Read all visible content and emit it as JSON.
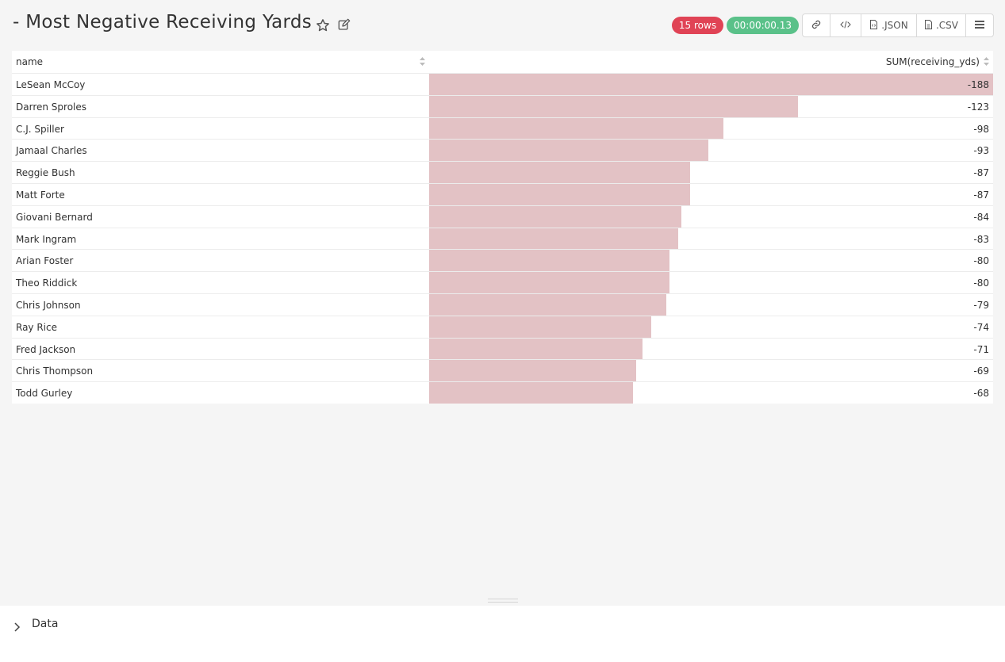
{
  "header": {
    "title": "- Most Negative Receiving Yards",
    "rows_badge": "15 rows",
    "time_badge": "00:00:00.13",
    "json_label": ".JSON",
    "csv_label": ".CSV"
  },
  "table": {
    "columns": [
      "name",
      "SUM(receiving_yds)"
    ],
    "max_abs": 188,
    "rows": [
      {
        "name": "LeSean McCoy",
        "value": -188
      },
      {
        "name": "Darren Sproles",
        "value": -123
      },
      {
        "name": "C.J. Spiller",
        "value": -98
      },
      {
        "name": "Jamaal Charles",
        "value": -93
      },
      {
        "name": "Reggie Bush",
        "value": -87
      },
      {
        "name": "Matt Forte",
        "value": -87
      },
      {
        "name": "Giovani Bernard",
        "value": -84
      },
      {
        "name": "Mark Ingram",
        "value": -83
      },
      {
        "name": "Arian Foster",
        "value": -80
      },
      {
        "name": "Theo Riddick",
        "value": -80
      },
      {
        "name": "Chris Johnson",
        "value": -79
      },
      {
        "name": "Ray Rice",
        "value": -74
      },
      {
        "name": "Fred Jackson",
        "value": -71
      },
      {
        "name": "Chris Thompson",
        "value": -69
      },
      {
        "name": "Todd Gurley",
        "value": -68
      }
    ]
  },
  "data_panel": {
    "label": "Data"
  },
  "colors": {
    "bar": "#e3c2c5",
    "rows_badge": "#e04355",
    "time_badge": "#5ac189"
  }
}
